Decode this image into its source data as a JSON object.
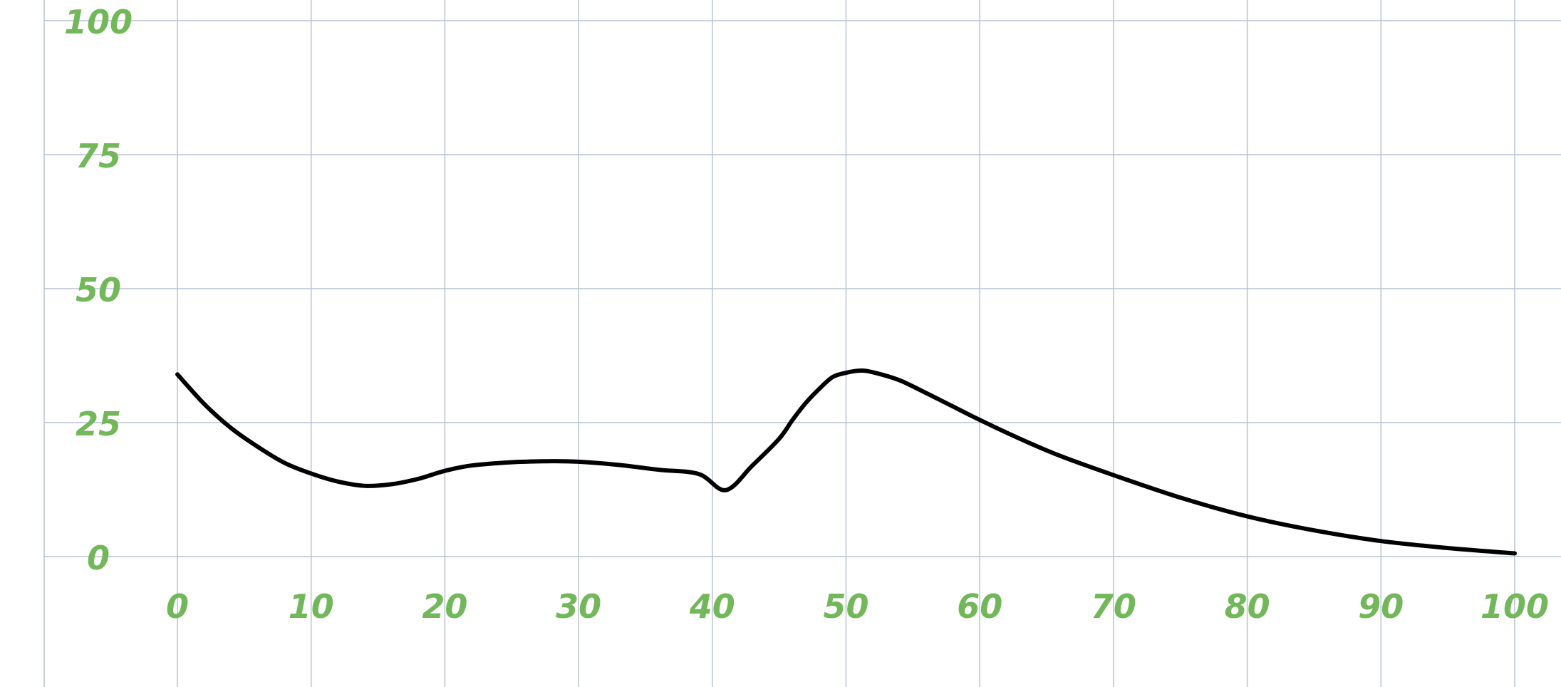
{
  "chart_data": {
    "type": "line",
    "title": "",
    "xlabel": "",
    "ylabel": "",
    "xlim": [
      0,
      100
    ],
    "ylim": [
      0,
      100
    ],
    "grid": true,
    "x_ticks": [
      {
        "value": 0,
        "label": "0"
      },
      {
        "value": 10,
        "label": "10"
      },
      {
        "value": 20,
        "label": "20"
      },
      {
        "value": 30,
        "label": "30"
      },
      {
        "value": 40,
        "label": "40"
      },
      {
        "value": 50,
        "label": "50"
      },
      {
        "value": 60,
        "label": "60"
      },
      {
        "value": 70,
        "label": "70"
      },
      {
        "value": 80,
        "label": "80"
      },
      {
        "value": 90,
        "label": "90"
      },
      {
        "value": 100,
        "label": "100"
      }
    ],
    "y_ticks": [
      {
        "value": 0,
        "label": "0"
      },
      {
        "value": 25,
        "label": "25"
      },
      {
        "value": 50,
        "label": "50"
      },
      {
        "value": 75,
        "label": "75"
      },
      {
        "value": 100,
        "label": "100"
      }
    ],
    "series": [
      {
        "color": "#000000",
        "x": [
          0,
          2,
          4,
          6,
          8,
          10,
          12,
          14,
          16,
          18,
          20,
          22,
          25,
          28,
          30,
          33,
          36,
          39,
          41,
          43,
          45,
          46,
          47,
          48,
          49,
          50,
          51,
          52,
          54,
          56,
          58,
          60,
          63,
          66,
          70,
          75,
          80,
          85,
          90,
          95,
          100
        ],
        "y": [
          34,
          28.5,
          24,
          20.5,
          17.5,
          15.5,
          14,
          13.2,
          13.5,
          14.5,
          16,
          17,
          17.6,
          17.8,
          17.7,
          17.1,
          16.2,
          15.4,
          12.4,
          17,
          22,
          25.5,
          28.7,
          31.3,
          33.5,
          34.3,
          34.7,
          34.4,
          32.9,
          30.5,
          28,
          25.5,
          22,
          18.8,
          15.2,
          11,
          7.5,
          4.9,
          2.9,
          1.6,
          0.6
        ]
      }
    ]
  }
}
